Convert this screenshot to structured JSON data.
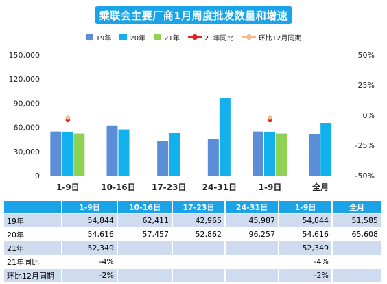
{
  "colors": {
    "title_bg": "#1aa3e6",
    "header_bg": "#1aa3e6",
    "row_band": "#cfdcf0",
    "row_plain": "#ffffff",
    "s19": "#5b8ed6",
    "s20": "#12b0ec",
    "s21": "#8ed154",
    "yoy21": "#e32222",
    "mom12": "#f5b98a"
  },
  "chart_data": {
    "type": "bar",
    "title": "乘联会主要厂商1月周度批发数量和增速",
    "categories": [
      "1-9日",
      "10-16日",
      "17-23日",
      "24-31日",
      "1-9日",
      "全月"
    ],
    "series": [
      {
        "name": "19年",
        "kind": "bar",
        "axis": "left",
        "values": [
          54844,
          62411,
          42965,
          45987,
          54844,
          51585
        ]
      },
      {
        "name": "20年",
        "kind": "bar",
        "axis": "left",
        "values": [
          54616,
          57457,
          52862,
          96257,
          54616,
          65608
        ]
      },
      {
        "name": "21年",
        "kind": "bar",
        "axis": "left",
        "values": [
          52349,
          null,
          null,
          null,
          52349,
          null
        ]
      },
      {
        "name": "21年同比",
        "kind": "line",
        "axis": "right",
        "values": [
          -4,
          null,
          null,
          null,
          -4,
          null
        ]
      },
      {
        "name": "环比12月同期",
        "kind": "line",
        "axis": "right",
        "values": [
          -2,
          null,
          null,
          null,
          -2,
          null
        ]
      }
    ],
    "ylim": [
      0,
      150000
    ],
    "y_ticks": [
      "150,000",
      "120,000",
      "90,000",
      "60,000",
      "30,000",
      "0"
    ],
    "y2lim": [
      -50,
      50
    ],
    "y2_ticks": [
      "50%",
      "25%",
      "0%",
      "-25%",
      "-50%"
    ],
    "legend_position": "top-center",
    "grid": false
  },
  "table": {
    "headers": [
      "",
      "1-9日",
      "10-16日",
      "17-23日",
      "24-31日",
      "1-9日",
      "全月"
    ],
    "rows": [
      [
        "19年",
        "54,844",
        "62,411",
        "42,965",
        "45,987",
        "54,844",
        "51,585"
      ],
      [
        "20年",
        "54,616",
        "57,457",
        "52,862",
        "96,257",
        "54,616",
        "65,608"
      ],
      [
        "21年",
        "52,349",
        "",
        "",
        "",
        "52,349",
        ""
      ],
      [
        "21年同比",
        "-4%",
        "",
        "",
        "",
        "-4%",
        ""
      ],
      [
        "环比12月同期",
        "-2%",
        "",
        "",
        "",
        "-2%",
        ""
      ]
    ]
  }
}
